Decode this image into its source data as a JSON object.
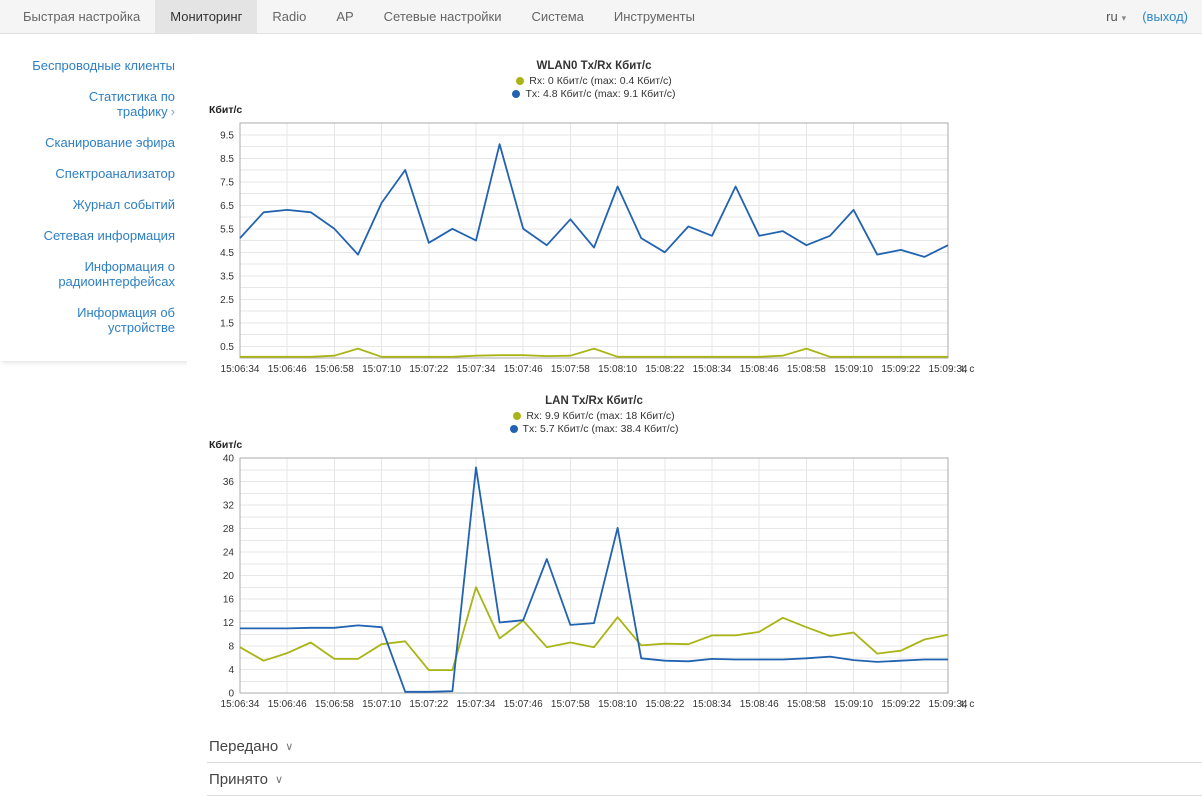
{
  "topbar": {
    "tabs": [
      {
        "label": "Быстрая настройка",
        "active": false
      },
      {
        "label": "Мониторинг",
        "active": true
      },
      {
        "label": "Radio",
        "active": false
      },
      {
        "label": "AP",
        "active": false
      },
      {
        "label": "Сетевые настройки",
        "active": false
      },
      {
        "label": "Система",
        "active": false
      },
      {
        "label": "Инструменты",
        "active": false
      }
    ],
    "language": "ru",
    "language_caret": "▾",
    "logout_label": "(выход)"
  },
  "sidebar": {
    "items": [
      {
        "label": "Беспроводные клиенты"
      },
      {
        "label": "Статистика по трафику",
        "suffix": "›"
      },
      {
        "label": "Сканирование эфира"
      },
      {
        "label": "Спектроанализатор"
      },
      {
        "label": "Журнал событий"
      },
      {
        "label": "Сетевая информация"
      },
      {
        "label": "Информация о радиоинтерфейсах"
      },
      {
        "label": "Информация об устройстве"
      }
    ]
  },
  "chart_data": [
    {
      "type": "line",
      "title": "WLAN0 Tx/Rx Кбит/с",
      "ylabel": "Кбит/с",
      "xlabel": "t, c",
      "ylim": [
        0,
        10
      ],
      "y_grid_step": 0.5,
      "y_ticks": [
        0.5,
        1.5,
        2.5,
        3.5,
        4.5,
        5.5,
        6.5,
        7.5,
        8.5,
        9.5
      ],
      "grid": true,
      "legend_position": "top",
      "x": [
        "15:06:34",
        "15:06:40",
        "15:06:46",
        "15:06:52",
        "15:06:58",
        "15:07:04",
        "15:07:10",
        "15:07:16",
        "15:07:22",
        "15:07:28",
        "15:07:34",
        "15:07:40",
        "15:07:46",
        "15:07:52",
        "15:07:58",
        "15:08:04",
        "15:08:10",
        "15:08:16",
        "15:08:22",
        "15:08:28",
        "15:08:34",
        "15:08:40",
        "15:08:46",
        "15:08:52",
        "15:08:58",
        "15:09:04",
        "15:09:10",
        "15:09:16",
        "15:09:22",
        "15:09:28",
        "15:09:34"
      ],
      "x_tick_labels": [
        "15:06:34",
        "15:06:46",
        "15:06:58",
        "15:07:10",
        "15:07:22",
        "15:07:34",
        "15:07:46",
        "15:07:58",
        "15:08:10",
        "15:08:22",
        "15:08:34",
        "15:08:46",
        "15:08:58",
        "15:09:10",
        "15:09:22",
        "15:09:34"
      ],
      "series": [
        {
          "name": "Rx",
          "legend": "Rx: 0 Кбит/с (max: 0.4 Кбит/с)",
          "color": "#a9b514",
          "values": [
            0.05,
            0.05,
            0.05,
            0.05,
            0.1,
            0.4,
            0.05,
            0.05,
            0.05,
            0.05,
            0.1,
            0.12,
            0.12,
            0.08,
            0.1,
            0.4,
            0.05,
            0.05,
            0.05,
            0.05,
            0.05,
            0.05,
            0.05,
            0.1,
            0.4,
            0.05,
            0.05,
            0.05,
            0.05,
            0.05,
            0.05
          ]
        },
        {
          "name": "Tx",
          "legend": "Tx: 4.8 Кбит/с (max: 9.1 Кбит/с)",
          "color": "#2163b0",
          "values": [
            5.1,
            6.2,
            6.3,
            6.2,
            5.5,
            4.4,
            6.6,
            8.0,
            4.9,
            5.5,
            5.0,
            9.1,
            5.5,
            4.8,
            5.9,
            4.7,
            7.3,
            5.1,
            4.5,
            5.6,
            5.2,
            7.3,
            5.2,
            5.4,
            4.8,
            5.2,
            6.3,
            4.4,
            4.6,
            4.3,
            4.8
          ]
        }
      ]
    },
    {
      "type": "line",
      "title": "LAN Tx/Rx Кбит/с",
      "ylabel": "Кбит/с",
      "xlabel": "t, c",
      "ylim": [
        0,
        40
      ],
      "y_grid_step": 2,
      "y_ticks": [
        0,
        4,
        8,
        12,
        16,
        20,
        24,
        28,
        32,
        36,
        40
      ],
      "grid": true,
      "legend_position": "top",
      "x": [
        "15:06:34",
        "15:06:40",
        "15:06:46",
        "15:06:52",
        "15:06:58",
        "15:07:04",
        "15:07:10",
        "15:07:16",
        "15:07:22",
        "15:07:28",
        "15:07:34",
        "15:07:40",
        "15:07:46",
        "15:07:52",
        "15:07:58",
        "15:08:04",
        "15:08:10",
        "15:08:16",
        "15:08:22",
        "15:08:28",
        "15:08:34",
        "15:08:40",
        "15:08:46",
        "15:08:52",
        "15:08:58",
        "15:09:04",
        "15:09:10",
        "15:09:16",
        "15:09:22",
        "15:09:28",
        "15:09:34"
      ],
      "x_tick_labels": [
        "15:06:34",
        "15:06:46",
        "15:06:58",
        "15:07:10",
        "15:07:22",
        "15:07:34",
        "15:07:46",
        "15:07:58",
        "15:08:10",
        "15:08:22",
        "15:08:34",
        "15:08:46",
        "15:08:58",
        "15:09:10",
        "15:09:22",
        "15:09:34"
      ],
      "series": [
        {
          "name": "Rx",
          "legend": "Rx: 9.9 Кбит/с (max: 18 Кбит/с)",
          "color": "#a9b514",
          "values": [
            7.8,
            5.5,
            6.8,
            8.6,
            5.8,
            5.8,
            8.3,
            8.8,
            3.9,
            3.9,
            18.0,
            9.3,
            12.3,
            7.8,
            8.6,
            7.8,
            12.9,
            8.1,
            8.4,
            8.3,
            9.8,
            9.8,
            10.4,
            12.8,
            11.2,
            9.7,
            10.3,
            6.7,
            7.2,
            9.1,
            9.9
          ]
        },
        {
          "name": "Tx",
          "legend": "Tx: 5.7 Кбит/с (max: 38.4 Кбит/с)",
          "color": "#2163b0",
          "values": [
            11.0,
            11.0,
            11.0,
            11.1,
            11.1,
            11.5,
            11.2,
            0.2,
            0.2,
            0.3,
            38.4,
            12.0,
            12.4,
            22.8,
            11.6,
            11.9,
            28.1,
            5.9,
            5.5,
            5.4,
            5.8,
            5.7,
            5.7,
            5.7,
            5.9,
            6.2,
            5.6,
            5.3,
            5.5,
            5.7,
            5.7
          ]
        }
      ]
    }
  ],
  "sections": [
    {
      "label": "Передано",
      "chevron": "∨"
    },
    {
      "label": "Принято",
      "chevron": "∨"
    }
  ],
  "colors": {
    "rx": "#a9b514",
    "tx": "#2163b0",
    "link": "#2e7fc2",
    "active_tab_bg": "#e4e4e4",
    "topbar_bg": "#f5f5f5",
    "grid": "#e7e7e7",
    "frame": "#ababab"
  }
}
